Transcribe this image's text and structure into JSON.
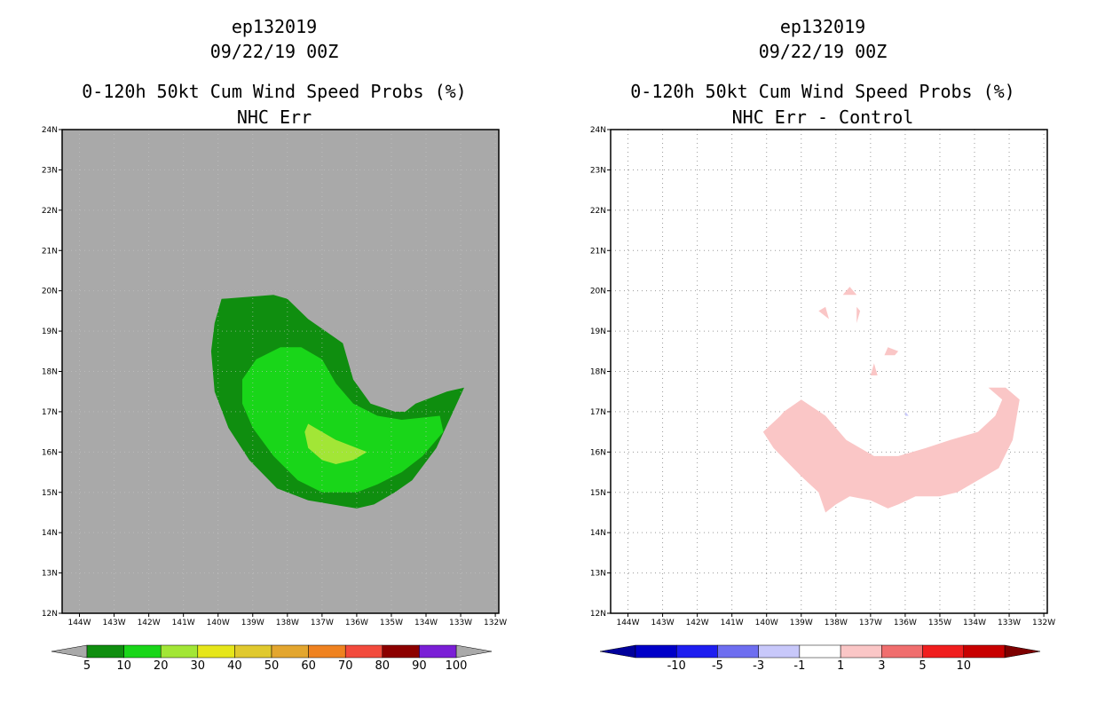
{
  "chart_data": [
    {
      "type": "filled-contour",
      "storm_id": "ep132019",
      "date": "09/22/19 00Z",
      "title": "0-120h 50kt Cum Wind Speed Probs (%)",
      "subtitle": "NHC Err",
      "x_tick_labels": [
        "144W",
        "143W",
        "142W",
        "141W",
        "140W",
        "139W",
        "138W",
        "137W",
        "136W",
        "135W",
        "134W",
        "133W",
        "132W"
      ],
      "y_tick_labels": [
        "12N",
        "13N",
        "14N",
        "15N",
        "16N",
        "17N",
        "18N",
        "19N",
        "20N",
        "21N",
        "22N",
        "23N",
        "24N"
      ],
      "xlim": [
        -144.5,
        -131.9
      ],
      "ylim": [
        12,
        24
      ],
      "background_color": "#a9a9a9",
      "levels": [
        {
          "min": 5,
          "color": "#0f8e0f",
          "polygon": [
            [
              -139.9,
              19.8
            ],
            [
              -138.4,
              19.9
            ],
            [
              -138.0,
              19.8
            ],
            [
              -137.4,
              19.3
            ],
            [
              -136.9,
              19.0
            ],
            [
              -136.4,
              18.7
            ],
            [
              -136.1,
              17.8
            ],
            [
              -135.6,
              17.2
            ],
            [
              -134.9,
              17.0
            ],
            [
              -134.6,
              17.0
            ],
            [
              -134.3,
              17.2
            ],
            [
              -133.4,
              17.5
            ],
            [
              -132.9,
              17.6
            ],
            [
              -133.7,
              16.1
            ],
            [
              -134.4,
              15.3
            ],
            [
              -134.9,
              15.0
            ],
            [
              -135.5,
              14.7
            ],
            [
              -136.0,
              14.6
            ],
            [
              -136.7,
              14.7
            ],
            [
              -137.4,
              14.8
            ],
            [
              -138.3,
              15.1
            ],
            [
              -139.1,
              15.8
            ],
            [
              -139.7,
              16.6
            ],
            [
              -140.1,
              17.5
            ],
            [
              -140.2,
              18.5
            ],
            [
              -140.1,
              19.2
            ]
          ]
        },
        {
          "min": 10,
          "color": "#19d619",
          "polygon": [
            [
              -138.9,
              18.3
            ],
            [
              -138.2,
              18.6
            ],
            [
              -137.6,
              18.6
            ],
            [
              -137.0,
              18.3
            ],
            [
              -136.6,
              17.7
            ],
            [
              -136.1,
              17.2
            ],
            [
              -135.4,
              16.9
            ],
            [
              -134.7,
              16.8
            ],
            [
              -133.6,
              16.9
            ],
            [
              -133.5,
              16.5
            ],
            [
              -134.1,
              15.9
            ],
            [
              -134.7,
              15.5
            ],
            [
              -135.4,
              15.2
            ],
            [
              -136.0,
              15.0
            ],
            [
              -136.5,
              15.0
            ],
            [
              -137.0,
              15.0
            ],
            [
              -137.7,
              15.3
            ],
            [
              -138.4,
              15.9
            ],
            [
              -139.0,
              16.6
            ],
            [
              -139.3,
              17.2
            ],
            [
              -139.3,
              17.8
            ]
          ]
        },
        {
          "min": 20,
          "color": "#a2e636",
          "polygon": [
            [
              -137.4,
              16.7
            ],
            [
              -136.6,
              16.3
            ],
            [
              -135.7,
              16.0
            ],
            [
              -136.1,
              15.8
            ],
            [
              -136.6,
              15.7
            ],
            [
              -137.0,
              15.8
            ],
            [
              -137.4,
              16.1
            ],
            [
              -137.5,
              16.5
            ]
          ]
        }
      ],
      "colorbar": {
        "labels": [
          "5",
          "10",
          "20",
          "30",
          "40",
          "50",
          "60",
          "70",
          "80",
          "90",
          "100"
        ],
        "colors": [
          "#0f8e0f",
          "#19d619",
          "#a2e636",
          "#e6e61a",
          "#e0c92e",
          "#e3a62f",
          "#ef8220",
          "#f24a3c",
          "#8c0000",
          "#7a1fd6"
        ],
        "extend_color": "#a9a9a9"
      }
    },
    {
      "type": "filled-contour",
      "storm_id": "ep132019",
      "date": "09/22/19 00Z",
      "title": "0-120h 50kt Cum Wind Speed Probs (%)",
      "subtitle": "NHC Err - Control",
      "x_tick_labels": [
        "144W",
        "143W",
        "142W",
        "141W",
        "140W",
        "139W",
        "138W",
        "137W",
        "136W",
        "135W",
        "134W",
        "133W",
        "132W"
      ],
      "y_tick_labels": [
        "12N",
        "13N",
        "14N",
        "15N",
        "16N",
        "17N",
        "18N",
        "19N",
        "20N",
        "21N",
        "22N",
        "23N",
        "24N"
      ],
      "xlim": [
        -144.5,
        -131.9
      ],
      "ylim": [
        12,
        24
      ],
      "grid": true,
      "background_color": "#ffffff",
      "levels": [
        {
          "min": 1,
          "color": "#fac6c6",
          "polygon": [
            [
              -139.5,
              17.0
            ],
            [
              -139.0,
              17.3
            ],
            [
              -138.3,
              16.9
            ],
            [
              -137.7,
              16.3
            ],
            [
              -136.9,
              15.9
            ],
            [
              -136.2,
              15.9
            ],
            [
              -135.4,
              16.1
            ],
            [
              -134.7,
              16.3
            ],
            [
              -133.9,
              16.5
            ],
            [
              -133.4,
              16.9
            ],
            [
              -133.2,
              17.3
            ],
            [
              -133.6,
              17.6
            ],
            [
              -133.1,
              17.6
            ],
            [
              -132.7,
              17.3
            ],
            [
              -132.9,
              16.3
            ],
            [
              -133.3,
              15.6
            ],
            [
              -133.9,
              15.3
            ],
            [
              -134.5,
              15.0
            ],
            [
              -135.0,
              14.9
            ],
            [
              -135.4,
              14.9
            ],
            [
              -135.7,
              14.9
            ],
            [
              -136.2,
              14.7
            ],
            [
              -136.5,
              14.6
            ],
            [
              -137.0,
              14.8
            ],
            [
              -137.6,
              14.9
            ],
            [
              -138.0,
              14.7
            ],
            [
              -138.3,
              14.5
            ],
            [
              -138.5,
              15.0
            ],
            [
              -139.0,
              15.4
            ],
            [
              -139.8,
              16.1
            ],
            [
              -140.1,
              16.5
            ],
            [
              -139.6,
              16.9
            ]
          ]
        },
        {
          "min": 1,
          "color": "#fac6c6",
          "polygon": [
            [
              -138.5,
              19.5
            ],
            [
              -138.3,
              19.6
            ],
            [
              -138.2,
              19.3
            ]
          ]
        },
        {
          "min": 1,
          "color": "#fac6c6",
          "polygon": [
            [
              -137.6,
              20.1
            ],
            [
              -137.4,
              19.9
            ],
            [
              -137.8,
              19.9
            ]
          ]
        },
        {
          "min": 1,
          "color": "#fac6c6",
          "polygon": [
            [
              -137.4,
              19.6
            ],
            [
              -137.3,
              19.5
            ],
            [
              -137.4,
              19.2
            ]
          ]
        },
        {
          "min": 1,
          "color": "#fac6c6",
          "polygon": [
            [
              -136.5,
              18.6
            ],
            [
              -136.2,
              18.5
            ],
            [
              -136.3,
              18.4
            ],
            [
              -136.6,
              18.4
            ]
          ]
        },
        {
          "min": 1,
          "color": "#fac6c6",
          "polygon": [
            [
              -136.9,
              18.2
            ],
            [
              -136.8,
              17.9
            ],
            [
              -137.0,
              17.9
            ]
          ]
        },
        {
          "min": -3,
          "color": "#c8c8fa",
          "polygon": [
            [
              -136.0,
              17.0
            ],
            [
              -135.9,
              16.9
            ],
            [
              -136.0,
              16.9
            ]
          ]
        }
      ],
      "colorbar": {
        "labels": [
          "-10",
          "-5",
          "-3",
          "-1",
          "1",
          "3",
          "5",
          "10"
        ],
        "colors": [
          "#0000c8",
          "#1e1ef0",
          "#6e6ef0",
          "#c8c8fa",
          "#ffffff",
          "#fac6c6",
          "#f06e6e",
          "#f01e1e",
          "#c80000"
        ],
        "low_extend_color": "#00009b",
        "high_extend_color": "#7d0000"
      }
    }
  ]
}
